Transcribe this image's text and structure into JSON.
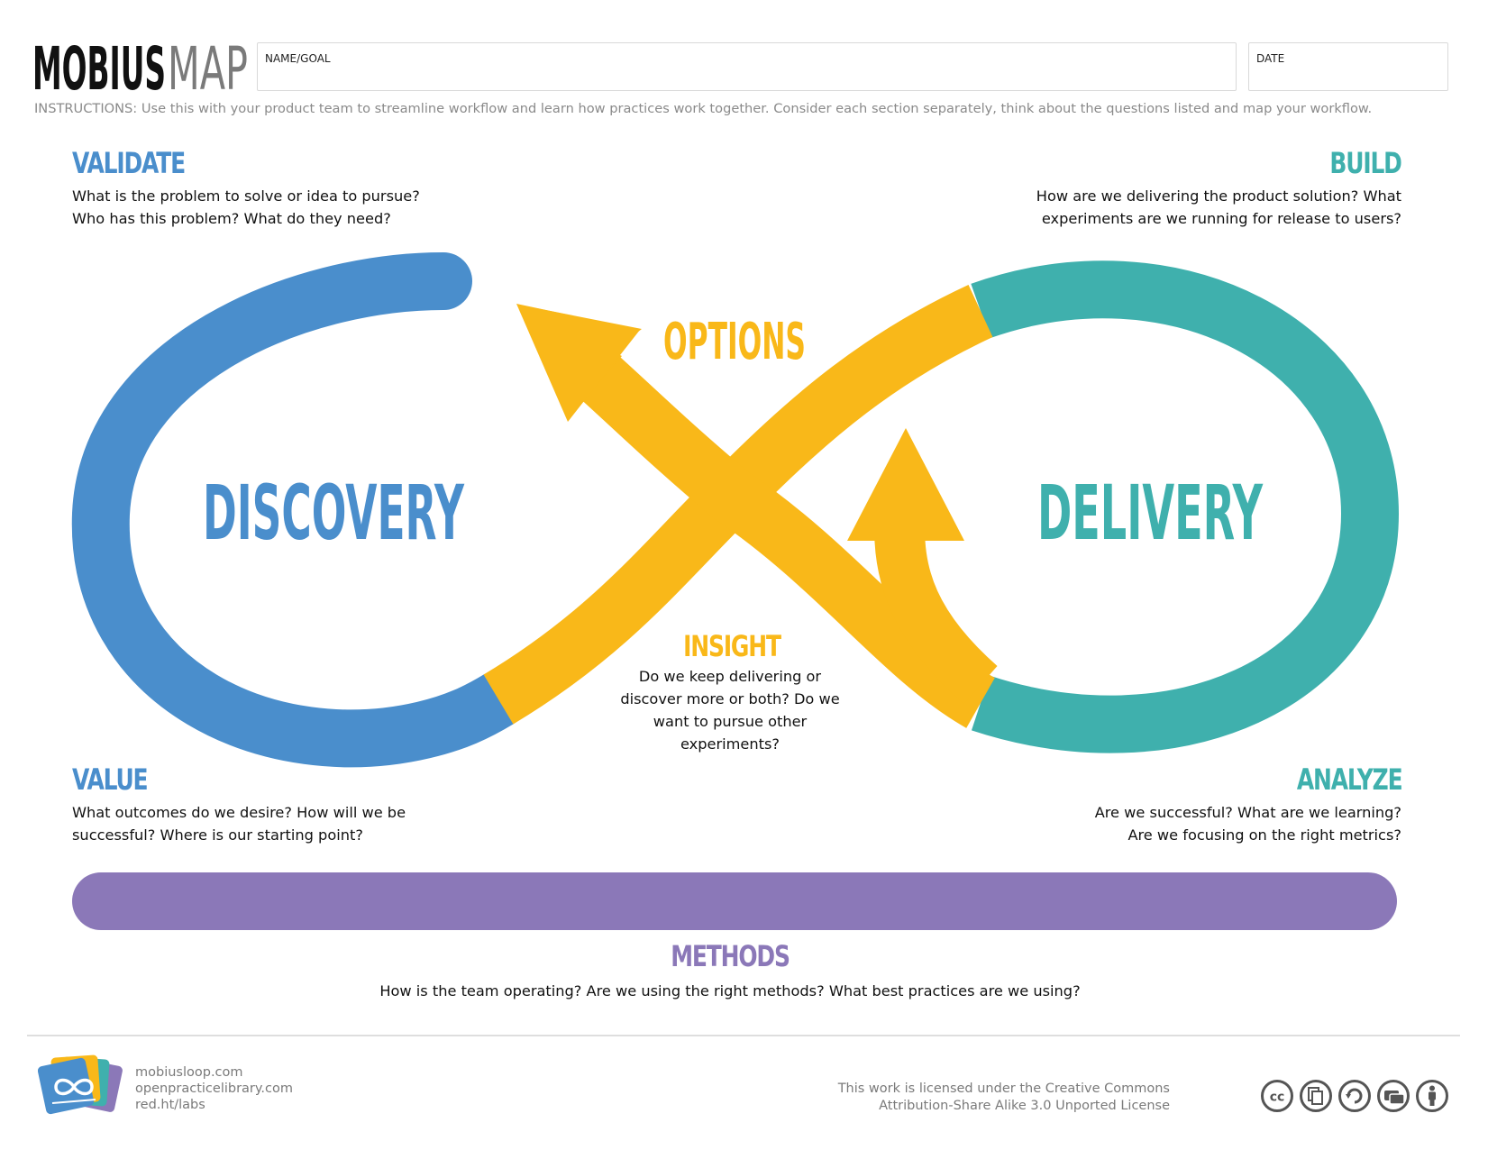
{
  "header": {
    "logo_bold": "MOBIUS",
    "logo_light": "MAP",
    "name_goal_label": "NAME/GOAL",
    "date_label": "DATE",
    "instructions": "INSTRUCTIONS: Use this with your product team to streamline workflow and learn how practices work together. Consider each section separately, think about the questions listed and map your workflow."
  },
  "sections": {
    "validate": {
      "title": "VALIDATE",
      "lines": [
        "What is the problem to solve or idea to pursue?",
        "Who has this problem? What do they need?"
      ]
    },
    "build": {
      "title": "BUILD",
      "lines": [
        "How are we delivering the product solution? What",
        "experiments are we running for release to users?"
      ]
    },
    "value": {
      "title": "VALUE",
      "lines": [
        "What outcomes do we desire? How will we be",
        "successful? Where is our starting point?"
      ]
    },
    "analyze": {
      "title": "ANALYZE",
      "lines": [
        "Are we successful? What are we learning?",
        "Are we focusing on the right metrics?"
      ]
    },
    "insight": {
      "title": "INSIGHT",
      "lines": [
        "Do we keep delivering or",
        "discover more or both? Do we",
        "want to pursue other",
        "experiments?"
      ]
    },
    "methods": {
      "title": "METHODS",
      "lines": [
        "How is the team operating? Are we using the right methods? What best practices are we using?"
      ]
    }
  },
  "diagram": {
    "discovery_label": "DISCOVERY",
    "delivery_label": "DELIVERY",
    "options_label": "OPTIONS",
    "colors": {
      "discovery": "#4a8ecc",
      "delivery": "#3fb0ad",
      "options": "#f9b819",
      "methods": "#8b78b8"
    }
  },
  "footer": {
    "links": [
      "mobiusloop.com",
      "openpracticelibrary.com",
      "red.ht/labs"
    ],
    "license_lines": [
      "This work is licensed under the Creative Commons",
      "Attribution-Share Alike 3.0 Unported License"
    ],
    "license_icons": [
      "cc-icon",
      "copy-icon",
      "share-alike-icon",
      "commercial-icon",
      "attribution-icon"
    ]
  }
}
